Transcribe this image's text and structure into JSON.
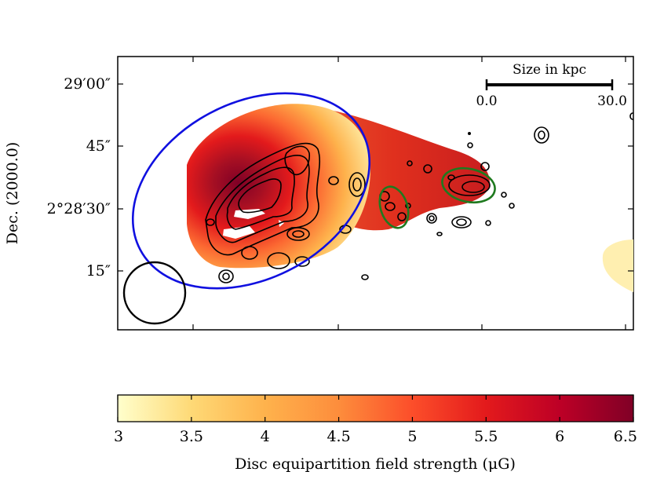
{
  "chart_data": {
    "type": "heatmap",
    "title": "",
    "ylabel": "Dec. (2000.0)",
    "y_ticks": [
      {
        "value": "29:00",
        "label": "29′00″"
      },
      {
        "value": "28:45",
        "label": "45″"
      },
      {
        "value": "28:30",
        "label": "2°28′30″"
      },
      {
        "value": "28:15",
        "label": "15″"
      }
    ],
    "scale_bar": {
      "title": "Size in kpc",
      "start_label": "0.0",
      "end_label": "30.0"
    },
    "colorbar": {
      "label": "Disc equipartition field strength (μG)",
      "range": [
        3,
        6.5
      ],
      "ticks": [
        3,
        3.5,
        4,
        4.5,
        5,
        5.5,
        6,
        6.5
      ],
      "tick_labels": [
        "3",
        "3.5",
        "4",
        "4.5",
        "5",
        "5.5",
        "6",
        "6.5"
      ],
      "colormap": "YlOrRd",
      "stops": [
        "#ffffcc",
        "#fed976",
        "#feb24c",
        "#fd8d3c",
        "#fc4e2a",
        "#e31a1c",
        "#bd0026",
        "#800026"
      ]
    },
    "overlays": [
      {
        "name": "disc aperture",
        "shape": "ellipse",
        "color": "#1010e0"
      },
      {
        "name": "tail region 1",
        "shape": "ellipse",
        "color": "#1f7a1f"
      },
      {
        "name": "tail region 2",
        "shape": "ellipse",
        "color": "#1f7a1f"
      },
      {
        "name": "beam",
        "shape": "circle",
        "color": "#000000"
      }
    ],
    "contours": "black radio continuum contour levels"
  }
}
